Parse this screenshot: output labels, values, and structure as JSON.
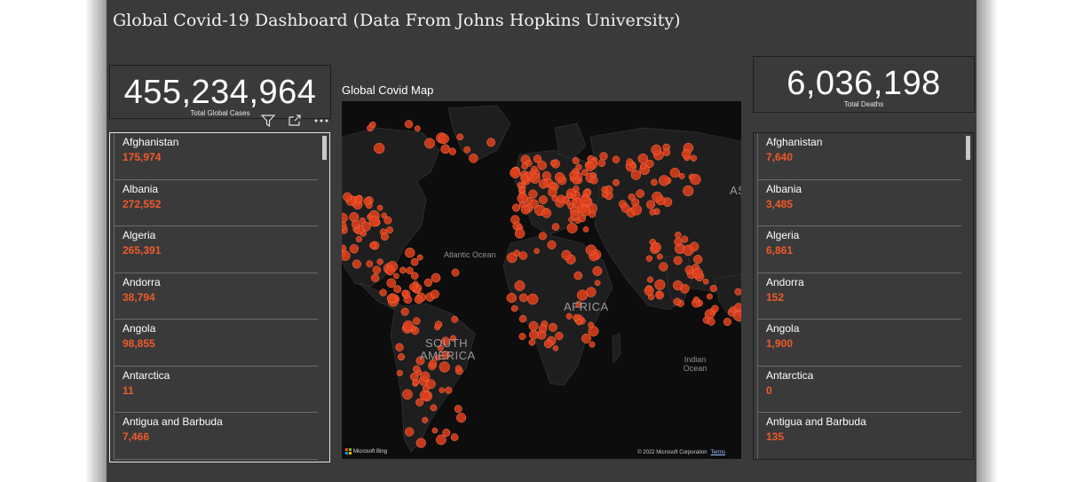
{
  "title": "Global Covid-19 Dashboard (Data From Johns Hopkins University)",
  "kpi_cases": {
    "value": "455,234,964",
    "label": "Total Global Cases"
  },
  "kpi_deaths": {
    "value": "6,036,198",
    "label": "Total Deaths"
  },
  "map": {
    "title": "Global Covid Map",
    "labels": {
      "atlantic": "Atlantic Ocean",
      "africa": "AFRICA",
      "south_america": "SOUTH AMERICA",
      "indian": "Indian Ocean",
      "asia": "AS"
    },
    "attribution": "Microsoft Bing",
    "copyright": "© 2022 Microsoft Corporation",
    "terms": "Terms",
    "bubble_color": "#e2401c",
    "land_color": "#1e1e1e",
    "water_color": "#0d0d0d"
  },
  "cases_list": [
    {
      "country": "Afghanistan",
      "value": "175,974"
    },
    {
      "country": "Albania",
      "value": "272,552"
    },
    {
      "country": "Algeria",
      "value": "265,391"
    },
    {
      "country": "Andorra",
      "value": "38,794"
    },
    {
      "country": "Angola",
      "value": "98,855"
    },
    {
      "country": "Antarctica",
      "value": "11"
    },
    {
      "country": "Antigua and Barbuda",
      "value": "7,466"
    }
  ],
  "deaths_list": [
    {
      "country": "Afghanistan",
      "value": "7,640"
    },
    {
      "country": "Albania",
      "value": "3,485"
    },
    {
      "country": "Algeria",
      "value": "6,861"
    },
    {
      "country": "Andorra",
      "value": "152"
    },
    {
      "country": "Angola",
      "value": "1,900"
    },
    {
      "country": "Antarctica",
      "value": "0"
    },
    {
      "country": "Antigua and Barbuda",
      "value": "135"
    }
  ],
  "colors": {
    "accent": "#f05a2a",
    "background": "#3a3a3a"
  },
  "icons": [
    "filter-icon",
    "focus-mode-icon",
    "more-options-icon"
  ]
}
